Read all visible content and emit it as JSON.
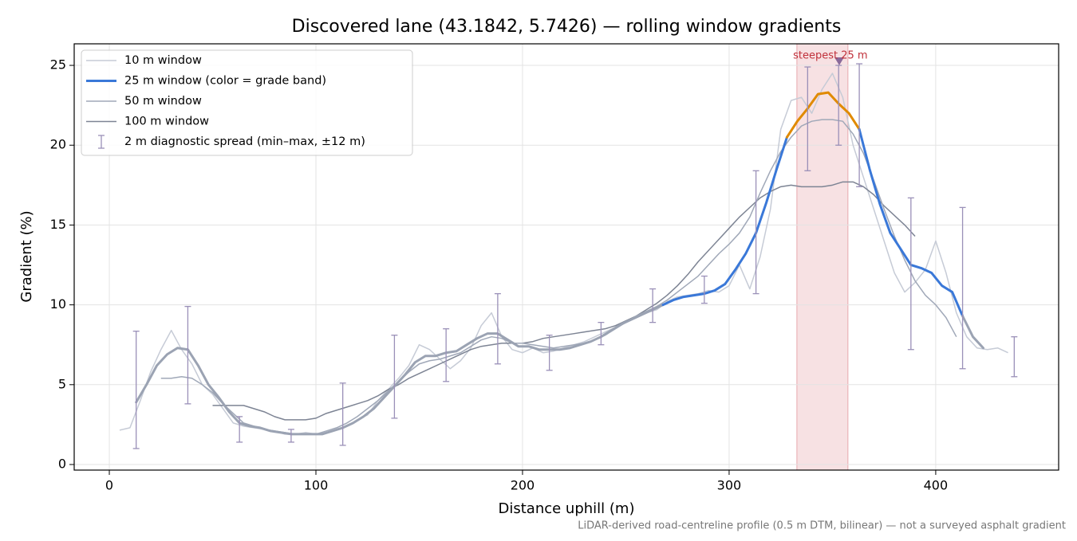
{
  "chart_data": {
    "type": "line",
    "title": "Discovered lane (43.1842, 5.7426) — rolling window gradients",
    "xlabel": "Distance uphill (m)",
    "ylabel": "Gradient (%)",
    "footnote": "LiDAR-derived road-centreline profile (0.5 m DTM, bilinear) — not a surveyed asphalt gradient",
    "xlim": [
      -17,
      459.5
    ],
    "ylim": [
      -0.35,
      26.35
    ],
    "xticks": [
      0,
      100,
      200,
      300,
      400
    ],
    "yticks": [
      0,
      5,
      10,
      15,
      20,
      25
    ],
    "grid": true,
    "legend": "upper left",
    "series": [
      {
        "name": "10 m window",
        "color": "#c6cbd6",
        "linewidth": 1.5,
        "x": [
          5,
          10,
          15,
          20,
          25,
          30,
          35,
          40,
          45,
          50,
          55,
          60,
          65,
          70,
          75,
          80,
          85,
          90,
          95,
          100,
          105,
          110,
          115,
          120,
          125,
          130,
          135,
          140,
          145,
          150,
          155,
          160,
          165,
          170,
          175,
          180,
          185,
          190,
          195,
          200,
          205,
          210,
          215,
          220,
          225,
          230,
          235,
          240,
          245,
          250,
          255,
          260,
          265,
          270,
          275,
          280,
          285,
          290,
          295,
          300,
          305,
          310,
          315,
          320,
          325,
          330,
          335,
          340,
          345,
          350,
          355,
          360,
          365,
          370,
          375,
          380,
          385,
          390,
          395,
          400,
          405,
          410,
          415,
          420,
          425,
          430,
          435
        ],
        "values": [
          2.15,
          2.3,
          4.0,
          5.8,
          7.2,
          8.4,
          7.2,
          6.3,
          5.0,
          4.4,
          3.5,
          2.6,
          2.4,
          2.3,
          2.2,
          2.1,
          1.9,
          1.9,
          2.0,
          1.9,
          2.0,
          2.2,
          2.4,
          2.8,
          3.1,
          4.0,
          4.7,
          5.4,
          6.2,
          7.5,
          7.2,
          6.6,
          6.0,
          6.5,
          7.3,
          8.7,
          9.5,
          8.0,
          7.2,
          7.0,
          7.3,
          7.0,
          7.1,
          7.3,
          7.5,
          7.7,
          8.0,
          8.3,
          8.6,
          8.9,
          9.2,
          9.5,
          9.7,
          10.2,
          10.5,
          10.6,
          10.7,
          10.9,
          10.8,
          11.2,
          12.5,
          11.0,
          13.0,
          16.0,
          21.0,
          22.8,
          23.0,
          22.0,
          23.5,
          24.5,
          23.0,
          20.0,
          18.0,
          16.0,
          14.0,
          12.0,
          10.8,
          11.4,
          12.2,
          14.0,
          12.0,
          9.5,
          8.0,
          7.3,
          7.2,
          7.3,
          7.0
        ]
      },
      {
        "name": "25 m window (color = grade band)",
        "color": "#9ba3b3",
        "linewidth": 3,
        "legend_color": "#3a78d8",
        "band_colors": [
          {
            "min": 10,
            "color": "#3a78d8"
          },
          {
            "min": 20,
            "color": "#e08a00"
          }
        ],
        "x": [
          13,
          18,
          23,
          28,
          33,
          38,
          43,
          48,
          53,
          58,
          63,
          68,
          73,
          78,
          83,
          88,
          93,
          98,
          103,
          108,
          113,
          118,
          123,
          128,
          133,
          138,
          143,
          148,
          153,
          158,
          163,
          168,
          173,
          178,
          183,
          188,
          193,
          198,
          203,
          208,
          213,
          218,
          223,
          228,
          233,
          238,
          243,
          248,
          253,
          258,
          263,
          268,
          273,
          278,
          283,
          288,
          293,
          298,
          303,
          308,
          313,
          318,
          323,
          328,
          333,
          338,
          343,
          348,
          353,
          358,
          363,
          368,
          373,
          378,
          383,
          388,
          393,
          398,
          403,
          408,
          413,
          418,
          423
        ],
        "values": [
          3.9,
          5.0,
          6.2,
          6.9,
          7.3,
          7.2,
          6.2,
          5.0,
          4.2,
          3.3,
          2.6,
          2.4,
          2.3,
          2.1,
          2.0,
          1.9,
          1.9,
          1.9,
          1.9,
          2.1,
          2.3,
          2.6,
          3.0,
          3.5,
          4.2,
          4.9,
          5.6,
          6.4,
          6.8,
          6.8,
          7.0,
          7.1,
          7.5,
          7.9,
          8.2,
          8.2,
          7.8,
          7.4,
          7.4,
          7.2,
          7.2,
          7.2,
          7.3,
          7.5,
          7.7,
          8.0,
          8.4,
          8.8,
          9.1,
          9.4,
          9.7,
          10.0,
          10.3,
          10.5,
          10.6,
          10.7,
          10.9,
          11.3,
          12.2,
          13.2,
          14.5,
          16.4,
          18.5,
          20.5,
          21.5,
          22.3,
          23.2,
          23.3,
          22.6,
          22.0,
          21.0,
          18.5,
          16.3,
          14.5,
          13.5,
          12.5,
          12.3,
          12.0,
          11.2,
          10.8,
          9.3,
          8.0,
          7.3
        ]
      },
      {
        "name": "50 m window",
        "color": "#a0a8b8",
        "linewidth": 1.5,
        "x": [
          25,
          30,
          35,
          40,
          45,
          50,
          55,
          60,
          65,
          70,
          75,
          80,
          85,
          90,
          95,
          100,
          105,
          110,
          115,
          120,
          125,
          130,
          135,
          140,
          145,
          150,
          155,
          160,
          165,
          170,
          175,
          180,
          185,
          190,
          195,
          200,
          205,
          210,
          215,
          220,
          225,
          230,
          235,
          240,
          245,
          250,
          255,
          260,
          265,
          270,
          275,
          280,
          285,
          290,
          295,
          300,
          305,
          310,
          315,
          320,
          325,
          330,
          335,
          340,
          345,
          350,
          355,
          360,
          365,
          370,
          375,
          380,
          385,
          390,
          395,
          400,
          405,
          410
        ],
        "values": [
          5.4,
          5.4,
          5.5,
          5.4,
          5.0,
          4.5,
          3.8,
          3.2,
          2.6,
          2.4,
          2.2,
          2.1,
          2.0,
          1.9,
          1.9,
          1.9,
          2.1,
          2.3,
          2.6,
          3.0,
          3.5,
          4.0,
          4.6,
          5.2,
          5.8,
          6.3,
          6.5,
          6.6,
          6.8,
          7.0,
          7.4,
          7.8,
          8.0,
          7.9,
          7.6,
          7.6,
          7.5,
          7.4,
          7.3,
          7.4,
          7.5,
          7.6,
          7.8,
          8.1,
          8.5,
          8.9,
          9.3,
          9.6,
          9.9,
          10.3,
          10.8,
          11.3,
          11.8,
          12.5,
          13.2,
          13.8,
          14.5,
          15.5,
          17.0,
          18.4,
          19.6,
          20.5,
          21.2,
          21.5,
          21.6,
          21.6,
          21.5,
          20.7,
          19.5,
          17.8,
          16.0,
          14.3,
          12.8,
          11.5,
          10.6,
          10.0,
          9.2,
          8.0
        ]
      },
      {
        "name": "100 m window",
        "color": "#7d8494",
        "linewidth": 1.5,
        "x": [
          50,
          55,
          60,
          65,
          70,
          75,
          80,
          85,
          90,
          95,
          100,
          105,
          110,
          115,
          120,
          125,
          130,
          135,
          140,
          145,
          150,
          155,
          160,
          165,
          170,
          175,
          180,
          185,
          190,
          195,
          200,
          205,
          210,
          215,
          220,
          225,
          230,
          235,
          240,
          245,
          250,
          255,
          260,
          265,
          270,
          275,
          280,
          285,
          290,
          295,
          300,
          305,
          310,
          315,
          320,
          325,
          330,
          335,
          340,
          345,
          350,
          355,
          360,
          365,
          370,
          375,
          380,
          385,
          390
        ],
        "values": [
          3.7,
          3.7,
          3.7,
          3.7,
          3.5,
          3.3,
          3.0,
          2.8,
          2.8,
          2.8,
          2.9,
          3.2,
          3.4,
          3.6,
          3.8,
          4.0,
          4.3,
          4.7,
          5.0,
          5.4,
          5.7,
          6.0,
          6.3,
          6.6,
          6.9,
          7.2,
          7.4,
          7.5,
          7.6,
          7.6,
          7.6,
          7.7,
          7.9,
          8.0,
          8.1,
          8.2,
          8.3,
          8.4,
          8.5,
          8.7,
          9.0,
          9.3,
          9.7,
          10.1,
          10.6,
          11.2,
          11.9,
          12.7,
          13.4,
          14.1,
          14.8,
          15.5,
          16.1,
          16.7,
          17.1,
          17.4,
          17.5,
          17.4,
          17.4,
          17.4,
          17.5,
          17.7,
          17.7,
          17.4,
          16.9,
          16.2,
          15.6,
          15.0,
          14.3
        ]
      }
    ],
    "errorbars": {
      "name": "2 m diagnostic spread (min–max, ±12 m)",
      "color": "#9a90b8",
      "x": [
        13,
        38,
        63,
        88,
        113,
        138,
        163,
        188,
        213,
        238,
        263,
        288,
        313,
        338,
        353,
        363,
        388,
        413,
        438
      ],
      "low": [
        1.0,
        3.8,
        1.4,
        1.4,
        1.2,
        2.9,
        5.2,
        6.3,
        5.9,
        7.5,
        8.9,
        10.1,
        10.7,
        18.4,
        20.0,
        17.4,
        7.2,
        6.0,
        5.5
      ],
      "high": [
        8.35,
        9.9,
        3.0,
        2.2,
        5.1,
        8.1,
        8.5,
        10.7,
        8.1,
        8.9,
        11.0,
        11.8,
        18.4,
        24.9,
        25.0,
        25.1,
        16.7,
        16.1,
        8.0
      ]
    },
    "highlight": {
      "xlim": [
        332.8,
        357.5
      ],
      "color": "#e8a8ae",
      "label": "steepest 25 m",
      "label_color": "#c0303a",
      "marker": {
        "x": 353.3,
        "y": 25.25,
        "color": "#8a6a9a"
      }
    }
  }
}
